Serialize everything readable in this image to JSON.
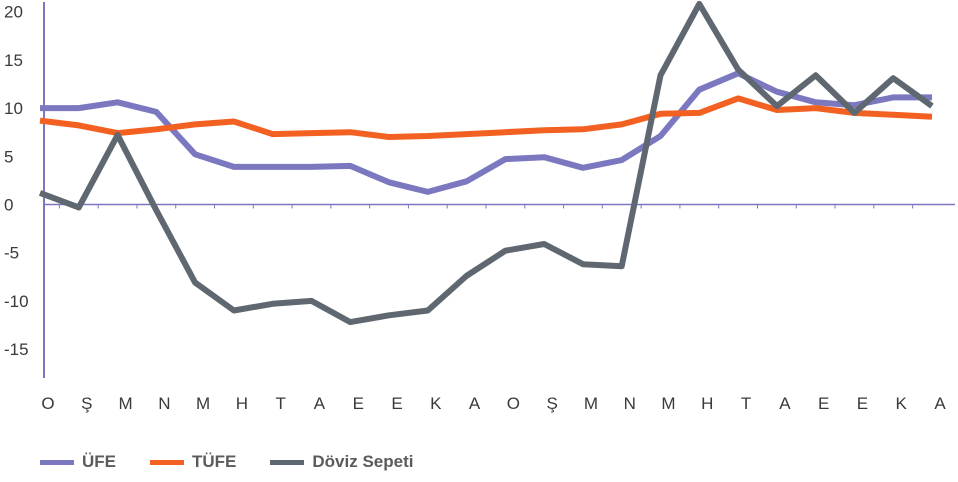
{
  "chart_data": {
    "type": "line",
    "x": [
      "O",
      "Ş",
      "M",
      "N",
      "M",
      "H",
      "T",
      "A",
      "E",
      "E",
      "K",
      "A",
      "O",
      "Ş",
      "M",
      "N",
      "M",
      "H",
      "T",
      "A",
      "E",
      "E",
      "K",
      "A"
    ],
    "ylim": [
      -18,
      21
    ],
    "yticks": [
      20,
      15,
      10,
      5,
      0,
      -5,
      -10,
      -15
    ],
    "grid": false,
    "legend_position": "bottom-left",
    "series": [
      {
        "name": "ÜFE",
        "color": "#7b78c0",
        "values": [
          10.0,
          10.0,
          10.6,
          9.6,
          5.2,
          3.9,
          3.9,
          3.9,
          4.0,
          2.3,
          1.3,
          2.4,
          4.7,
          4.9,
          3.8,
          4.6,
          7.1,
          11.9,
          13.6,
          11.7,
          10.6,
          10.3,
          11.1,
          11.1
        ]
      },
      {
        "name": "TÜFE",
        "color": "#f26122",
        "values": [
          8.7,
          8.2,
          7.4,
          7.8,
          8.3,
          8.6,
          7.3,
          7.4,
          7.5,
          7.0,
          7.1,
          7.3,
          7.5,
          7.7,
          7.8,
          8.3,
          9.4,
          9.5,
          11.0,
          9.8,
          10.0,
          9.5,
          9.3,
          9.1
        ]
      },
      {
        "name": "Döviz Sepeti",
        "color": "#5f6870",
        "values": [
          1.2,
          -0.3,
          7.2,
          -0.6,
          -8.1,
          -11.0,
          -10.3,
          -10.0,
          -12.2,
          -11.5,
          -11.0,
          -7.4,
          -4.8,
          -4.1,
          -6.2,
          -6.4,
          13.4,
          20.8,
          14.0,
          10.2,
          13.4,
          9.5,
          13.1,
          10.2
        ]
      }
    ]
  }
}
